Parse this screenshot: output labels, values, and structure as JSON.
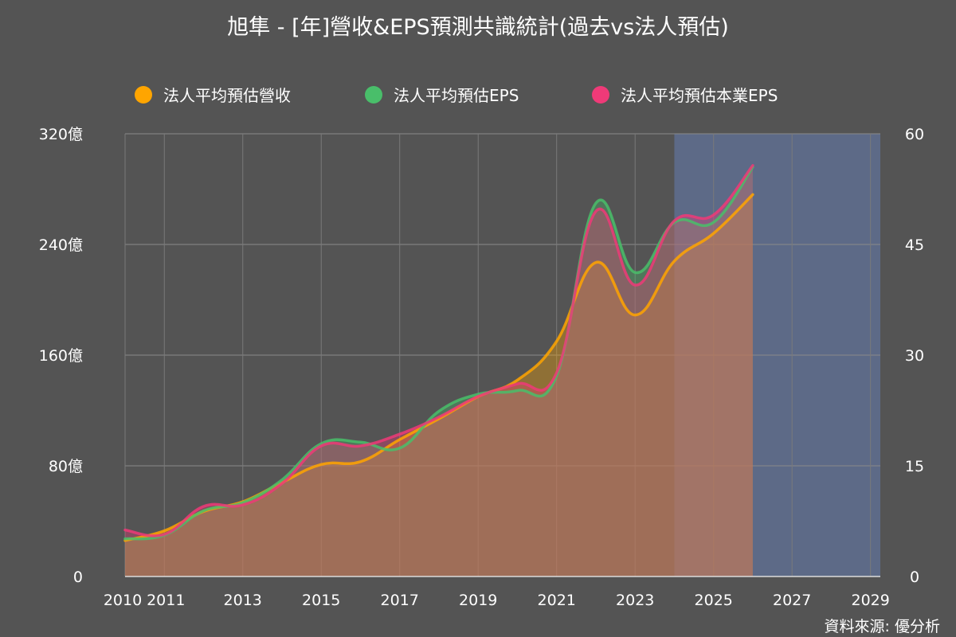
{
  "chart_data": {
    "type": "area",
    "title": "旭隼 - [年]營收&EPS預測共識統計(過去vs法人預估)",
    "source": "資料來源: 優分析",
    "forecast_region": {
      "x_start": 2024,
      "x_end": 2029.25,
      "color": "#5d6a87"
    },
    "x_axis": {
      "min": 2010,
      "max": 2029.25,
      "tick_labels": [
        "2010",
        "2011",
        "2013",
        "2015",
        "2017",
        "2019",
        "2021",
        "2023",
        "2025",
        "2027",
        "2029"
      ],
      "tick_values": [
        2010,
        2011,
        2013,
        2015,
        2017,
        2019,
        2021,
        2023,
        2025,
        2027,
        2029
      ],
      "grid_values": [
        2010,
        2011,
        2013,
        2015,
        2017,
        2019,
        2021,
        2023,
        2025,
        2027,
        2029
      ]
    },
    "y_left": {
      "min": 0,
      "max": 320,
      "ticks": [
        0,
        80,
        160,
        240,
        320
      ],
      "tick_labels": [
        "0",
        "80億",
        "160億",
        "240億",
        "320億"
      ]
    },
    "y_right": {
      "min": 0,
      "max": 60,
      "ticks": [
        0,
        15,
        30,
        45,
        60
      ],
      "tick_labels": [
        "0",
        "15",
        "30",
        "45",
        "60"
      ]
    },
    "series": [
      {
        "name": "法人平均預估營收",
        "axis": "left",
        "color": "#ffa500",
        "x": [
          2010,
          2011,
          2012,
          2013,
          2014,
          2015,
          2016,
          2017,
          2018,
          2019,
          2020,
          2021,
          2022,
          2023,
          2024,
          2025,
          2026
        ],
        "values": [
          26,
          33,
          47,
          54,
          68,
          81,
          83,
          99,
          114,
          130,
          142,
          170,
          227,
          189,
          228,
          248,
          276
        ]
      },
      {
        "name": "法人平均預估EPS",
        "axis": "right",
        "color": "#49be6a",
        "x": [
          2010,
          2011,
          2012,
          2013,
          2014,
          2015,
          2016,
          2017,
          2018,
          2019,
          2020,
          2021,
          2022,
          2023,
          2024,
          2025,
          2026
        ],
        "values": [
          5.1,
          5.6,
          8.9,
          10.0,
          13.1,
          18.0,
          18.2,
          17.4,
          22.4,
          24.7,
          25.2,
          27.2,
          50.6,
          41.2,
          48.0,
          48.0,
          55.5
        ]
      },
      {
        "name": "法人平均預估本業EPS",
        "axis": "right",
        "color": "#ef3a78",
        "x": [
          2010,
          2011,
          2012,
          2013,
          2014,
          2015,
          2016,
          2017,
          2018,
          2019,
          2020,
          2021,
          2022,
          2023,
          2024,
          2025,
          2026
        ],
        "values": [
          6.3,
          5.7,
          9.5,
          9.7,
          12.6,
          17.7,
          17.7,
          19.3,
          21.6,
          24.4,
          26.1,
          27.6,
          49.5,
          39.5,
          48.2,
          49.0,
          55.7
        ]
      }
    ]
  }
}
